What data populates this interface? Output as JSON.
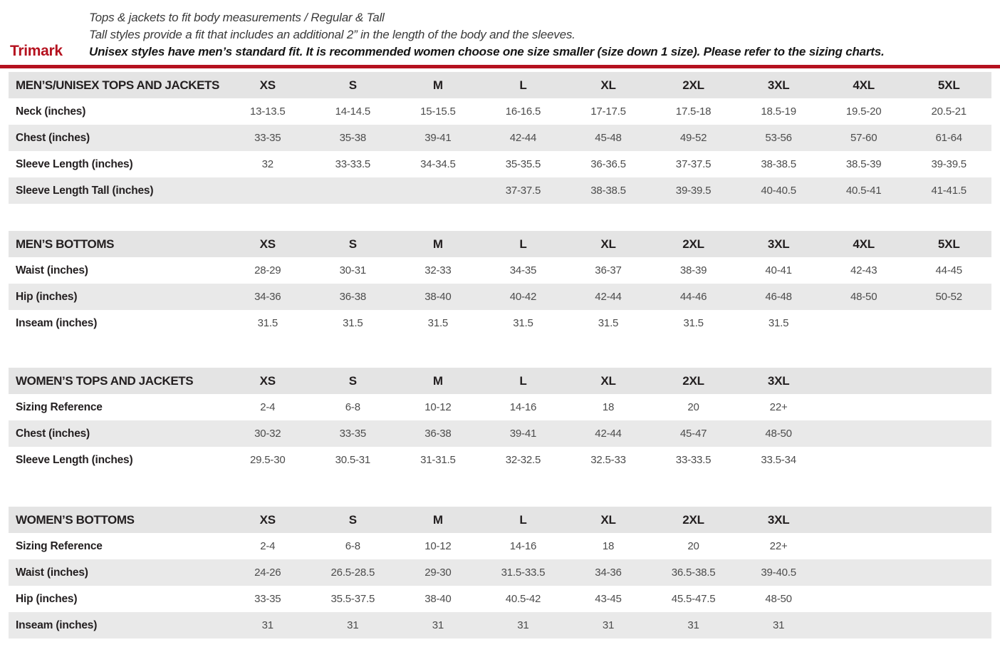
{
  "page": {
    "brand": "Trimark",
    "accent_color": "#b5121f",
    "stripe_color": "#e9e9e9",
    "intro": {
      "line1": "Tops & jackets to fit body measurements / Regular & Tall",
      "line2": "Tall styles provide a fit that includes an additional 2” in the length of the body and the sleeves.",
      "line3": "Unisex styles have men’s standard fit. It is recommended women choose one size smaller (size down 1 size).  Please refer to the sizing charts."
    }
  },
  "chart_data": [
    {
      "type": "table",
      "title": "MEN’S/UNISEX TOPS AND JACKETS",
      "columns": [
        "XS",
        "S",
        "M",
        "L",
        "XL",
        "2XL",
        "3XL",
        "4XL",
        "5XL"
      ],
      "rows": [
        {
          "label": "Neck (inches)",
          "values": [
            "13-13.5",
            "14-14.5",
            "15-15.5",
            "16-16.5",
            "17-17.5",
            "17.5-18",
            "18.5-19",
            "19.5-20",
            "20.5-21"
          ]
        },
        {
          "label": "Chest (inches)",
          "values": [
            "33-35",
            "35-38",
            "39-41",
            "42-44",
            "45-48",
            "49-52",
            "53-56",
            "57-60",
            "61-64"
          ]
        },
        {
          "label": "Sleeve Length (inches)",
          "values": [
            "32",
            "33-33.5",
            "34-34.5",
            "35-35.5",
            "36-36.5",
            "37-37.5",
            "38-38.5",
            "38.5-39",
            "39-39.5"
          ]
        },
        {
          "label": "Sleeve Length Tall (inches)",
          "values": [
            "",
            "",
            "",
            "37-37.5",
            "38-38.5",
            "39-39.5",
            "40-40.5",
            "40.5-41",
            "41-41.5"
          ]
        }
      ]
    },
    {
      "type": "table",
      "title": "MEN’S BOTTOMS",
      "columns": [
        "XS",
        "S",
        "M",
        "L",
        "XL",
        "2XL",
        "3XL",
        "4XL",
        "5XL"
      ],
      "rows": [
        {
          "label": "Waist (inches)",
          "values": [
            "28-29",
            "30-31",
            "32-33",
            "34-35",
            "36-37",
            "38-39",
            "40-41",
            "42-43",
            "44-45"
          ]
        },
        {
          "label": "Hip (inches)",
          "values": [
            "34-36",
            "36-38",
            "38-40",
            "40-42",
            "42-44",
            "44-46",
            "46-48",
            "48-50",
            "50-52"
          ]
        },
        {
          "label": "Inseam (inches)",
          "values": [
            "31.5",
            "31.5",
            "31.5",
            "31.5",
            "31.5",
            "31.5",
            "31.5",
            "",
            ""
          ]
        }
      ]
    },
    {
      "type": "table",
      "title": "WOMEN’S TOPS AND JACKETS",
      "columns": [
        "XS",
        "S",
        "M",
        "L",
        "XL",
        "2XL",
        "3XL"
      ],
      "rows": [
        {
          "label": "Sizing Reference",
          "values": [
            "2-4",
            "6-8",
            "10-12",
            "14-16",
            "18",
            "20",
            "22+"
          ]
        },
        {
          "label": "Chest (inches)",
          "values": [
            "30-32",
            "33-35",
            "36-38",
            "39-41",
            "42-44",
            "45-47",
            "48-50"
          ]
        },
        {
          "label": "Sleeve Length (inches)",
          "values": [
            "29.5-30",
            "30.5-31",
            "31-31.5",
            "32-32.5",
            "32.5-33",
            "33-33.5",
            "33.5-34"
          ]
        }
      ]
    },
    {
      "type": "table",
      "title": "WOMEN’S BOTTOMS",
      "columns": [
        "XS",
        "S",
        "M",
        "L",
        "XL",
        "2XL",
        "3XL"
      ],
      "rows": [
        {
          "label": "Sizing Reference",
          "values": [
            "2-4",
            "6-8",
            "10-12",
            "14-16",
            "18",
            "20",
            "22+"
          ]
        },
        {
          "label": "Waist (inches)",
          "values": [
            "24-26",
            "26.5-28.5",
            "29-30",
            "31.5-33.5",
            "34-36",
            "36.5-38.5",
            "39-40.5"
          ]
        },
        {
          "label": "Hip (inches)",
          "values": [
            "33-35",
            "35.5-37.5",
            "38-40",
            "40.5-42",
            "43-45",
            "45.5-47.5",
            "48-50"
          ]
        },
        {
          "label": "Inseam (inches)",
          "values": [
            "31",
            "31",
            "31",
            "31",
            "31",
            "31",
            "31"
          ]
        }
      ]
    }
  ]
}
